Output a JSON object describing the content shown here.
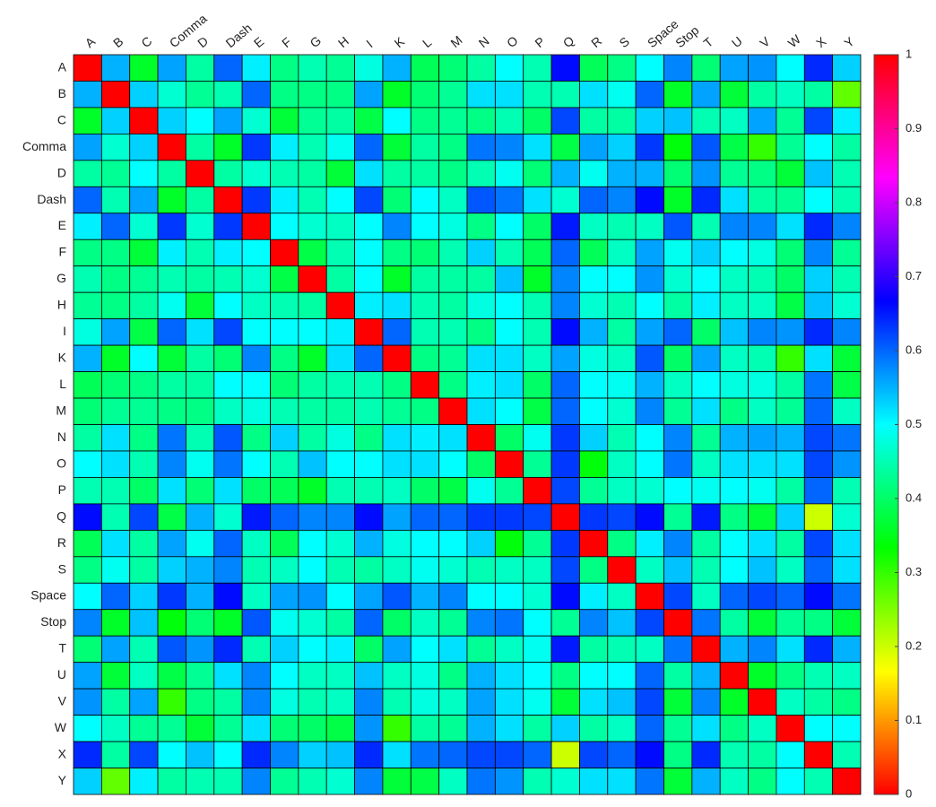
{
  "chart_data": {
    "type": "heatmap",
    "x_categories": [
      "A",
      "B",
      "C",
      "Comma",
      "D",
      "Dash",
      "E",
      "F",
      "G",
      "H",
      "I",
      "K",
      "L",
      "M",
      "N",
      "O",
      "P",
      "Q",
      "R",
      "S",
      "Space",
      "Stop",
      "T",
      "U",
      "V",
      "W",
      "X",
      "Y"
    ],
    "y_categories": [
      "A",
      "B",
      "C",
      "Comma",
      "D",
      "Dash",
      "E",
      "F",
      "G",
      "H",
      "I",
      "K",
      "L",
      "M",
      "N",
      "O",
      "P",
      "Q",
      "R",
      "S",
      "Space",
      "Stop",
      "T",
      "U",
      "V",
      "W",
      "X",
      "Y"
    ],
    "values": [
      [
        1,
        0.55,
        0.36,
        0.56,
        0.44,
        0.6,
        0.51,
        0.42,
        0.45,
        0.43,
        0.48,
        0.55,
        0.39,
        0.41,
        0.44,
        0.5,
        0.45,
        0.66,
        0.39,
        0.42,
        0.5,
        0.58,
        0.41,
        0.56,
        0.57,
        0.5,
        0.64,
        0.53
      ],
      [
        0.55,
        1,
        0.53,
        0.47,
        0.43,
        0.45,
        0.6,
        0.42,
        0.42,
        0.42,
        0.56,
        0.36,
        0.41,
        0.43,
        0.52,
        0.52,
        0.45,
        0.45,
        0.52,
        0.49,
        0.6,
        0.36,
        0.56,
        0.37,
        0.44,
        0.46,
        0.44,
        0.27
      ],
      [
        0.36,
        0.53,
        1,
        0.53,
        0.5,
        0.56,
        0.47,
        0.37,
        0.43,
        0.44,
        0.38,
        0.5,
        0.42,
        0.43,
        0.42,
        0.45,
        0.4,
        0.62,
        0.44,
        0.44,
        0.53,
        0.54,
        0.45,
        0.46,
        0.56,
        0.43,
        0.62,
        0.51
      ],
      [
        0.56,
        0.47,
        0.53,
        1,
        0.44,
        0.36,
        0.63,
        0.51,
        0.45,
        0.49,
        0.6,
        0.37,
        0.44,
        0.42,
        0.59,
        0.58,
        0.52,
        0.38,
        0.56,
        0.53,
        0.63,
        0.34,
        0.61,
        0.38,
        0.3,
        0.43,
        0.5,
        0.44
      ],
      [
        0.44,
        0.43,
        0.5,
        0.44,
        1,
        0.44,
        0.47,
        0.45,
        0.44,
        0.37,
        0.52,
        0.44,
        0.44,
        0.42,
        0.45,
        0.49,
        0.41,
        0.55,
        0.49,
        0.55,
        0.55,
        0.41,
        0.57,
        0.43,
        0.42,
        0.37,
        0.54,
        0.45
      ],
      [
        0.6,
        0.45,
        0.56,
        0.36,
        0.44,
        1,
        0.63,
        0.51,
        0.45,
        0.5,
        0.62,
        0.41,
        0.5,
        0.46,
        0.61,
        0.59,
        0.52,
        0.47,
        0.6,
        0.58,
        0.66,
        0.36,
        0.64,
        0.52,
        0.44,
        0.43,
        0.5,
        0.45
      ],
      [
        0.51,
        0.6,
        0.47,
        0.63,
        0.47,
        0.63,
        1,
        0.5,
        0.47,
        0.46,
        0.5,
        0.58,
        0.5,
        0.48,
        0.42,
        0.5,
        0.4,
        0.65,
        0.46,
        0.45,
        0.46,
        0.61,
        0.45,
        0.58,
        0.58,
        0.52,
        0.64,
        0.58
      ],
      [
        0.42,
        0.42,
        0.37,
        0.51,
        0.45,
        0.51,
        0.5,
        1,
        0.38,
        0.45,
        0.5,
        0.42,
        0.41,
        0.45,
        0.53,
        0.45,
        0.39,
        0.6,
        0.39,
        0.46,
        0.56,
        0.49,
        0.53,
        0.5,
        0.48,
        0.41,
        0.58,
        0.43
      ],
      [
        0.45,
        0.42,
        0.43,
        0.45,
        0.44,
        0.45,
        0.47,
        0.38,
        1,
        0.44,
        0.5,
        0.36,
        0.44,
        0.44,
        0.44,
        0.54,
        0.36,
        0.58,
        0.5,
        0.5,
        0.57,
        0.47,
        0.5,
        0.46,
        0.45,
        0.4,
        0.53,
        0.45
      ],
      [
        0.43,
        0.42,
        0.44,
        0.49,
        0.37,
        0.5,
        0.46,
        0.45,
        0.44,
        1,
        0.51,
        0.52,
        0.45,
        0.44,
        0.48,
        0.5,
        0.45,
        0.58,
        0.47,
        0.45,
        0.5,
        0.44,
        0.51,
        0.46,
        0.46,
        0.38,
        0.54,
        0.47
      ],
      [
        0.48,
        0.56,
        0.38,
        0.6,
        0.52,
        0.62,
        0.5,
        0.5,
        0.5,
        0.51,
        1,
        0.6,
        0.45,
        0.45,
        0.42,
        0.5,
        0.45,
        0.66,
        0.55,
        0.44,
        0.56,
        0.6,
        0.4,
        0.54,
        0.58,
        0.57,
        0.64,
        0.58
      ],
      [
        0.55,
        0.36,
        0.5,
        0.37,
        0.44,
        0.41,
        0.58,
        0.42,
        0.36,
        0.52,
        0.6,
        1,
        0.42,
        0.43,
        0.52,
        0.52,
        0.46,
        0.56,
        0.48,
        0.46,
        0.61,
        0.4,
        0.56,
        0.46,
        0.45,
        0.3,
        0.52,
        0.37
      ],
      [
        0.39,
        0.41,
        0.42,
        0.44,
        0.44,
        0.5,
        0.5,
        0.41,
        0.44,
        0.45,
        0.45,
        0.42,
        1,
        0.42,
        0.51,
        0.52,
        0.4,
        0.6,
        0.5,
        0.49,
        0.55,
        0.46,
        0.5,
        0.48,
        0.48,
        0.44,
        0.59,
        0.38
      ],
      [
        0.41,
        0.43,
        0.43,
        0.42,
        0.42,
        0.46,
        0.48,
        0.45,
        0.44,
        0.44,
        0.45,
        0.43,
        0.42,
        1,
        0.52,
        0.5,
        0.38,
        0.6,
        0.5,
        0.47,
        0.58,
        0.43,
        0.52,
        0.42,
        0.46,
        0.43,
        0.6,
        0.46
      ],
      [
        0.44,
        0.52,
        0.42,
        0.59,
        0.45,
        0.61,
        0.42,
        0.53,
        0.44,
        0.48,
        0.42,
        0.52,
        0.51,
        0.52,
        1,
        0.4,
        0.49,
        0.63,
        0.53,
        0.45,
        0.5,
        0.58,
        0.43,
        0.55,
        0.56,
        0.55,
        0.62,
        0.59
      ],
      [
        0.5,
        0.52,
        0.45,
        0.58,
        0.49,
        0.59,
        0.5,
        0.45,
        0.54,
        0.5,
        0.5,
        0.52,
        0.52,
        0.5,
        0.4,
        1,
        0.43,
        0.63,
        0.34,
        0.46,
        0.5,
        0.59,
        0.46,
        0.52,
        0.52,
        0.52,
        0.62,
        0.57
      ],
      [
        0.45,
        0.45,
        0.4,
        0.52,
        0.41,
        0.52,
        0.4,
        0.39,
        0.36,
        0.45,
        0.45,
        0.46,
        0.4,
        0.38,
        0.49,
        0.43,
        1,
        0.62,
        0.43,
        0.46,
        0.47,
        0.5,
        0.49,
        0.5,
        0.49,
        0.44,
        0.6,
        0.45
      ],
      [
        0.66,
        0.45,
        0.62,
        0.38,
        0.55,
        0.47,
        0.65,
        0.6,
        0.58,
        0.58,
        0.66,
        0.56,
        0.6,
        0.6,
        0.63,
        0.63,
        0.62,
        1,
        0.63,
        0.62,
        0.66,
        0.43,
        0.65,
        0.42,
        0.37,
        0.53,
        0.2,
        0.47
      ],
      [
        0.39,
        0.52,
        0.44,
        0.56,
        0.49,
        0.6,
        0.46,
        0.39,
        0.5,
        0.47,
        0.55,
        0.48,
        0.5,
        0.5,
        0.53,
        0.34,
        0.43,
        0.63,
        1,
        0.42,
        0.51,
        0.58,
        0.44,
        0.5,
        0.52,
        0.44,
        0.62,
        0.52
      ],
      [
        0.42,
        0.49,
        0.44,
        0.53,
        0.55,
        0.58,
        0.45,
        0.46,
        0.5,
        0.45,
        0.44,
        0.46,
        0.49,
        0.47,
        0.45,
        0.46,
        0.46,
        0.62,
        0.42,
        1,
        0.46,
        0.54,
        0.45,
        0.5,
        0.54,
        0.46,
        0.6,
        0.52
      ],
      [
        0.5,
        0.6,
        0.53,
        0.63,
        0.55,
        0.66,
        0.46,
        0.56,
        0.57,
        0.5,
        0.56,
        0.61,
        0.55,
        0.58,
        0.5,
        0.5,
        0.47,
        0.66,
        0.51,
        0.46,
        1,
        0.62,
        0.46,
        0.6,
        0.62,
        0.6,
        0.66,
        0.59
      ],
      [
        0.58,
        0.36,
        0.54,
        0.34,
        0.41,
        0.36,
        0.61,
        0.49,
        0.47,
        0.44,
        0.6,
        0.4,
        0.46,
        0.43,
        0.58,
        0.59,
        0.5,
        0.43,
        0.58,
        0.54,
        0.62,
        1,
        0.59,
        0.44,
        0.37,
        0.43,
        0.42,
        0.37
      ],
      [
        0.41,
        0.56,
        0.45,
        0.61,
        0.57,
        0.64,
        0.45,
        0.53,
        0.5,
        0.51,
        0.4,
        0.56,
        0.5,
        0.52,
        0.43,
        0.46,
        0.49,
        0.65,
        0.44,
        0.45,
        0.46,
        0.59,
        1,
        0.55,
        0.58,
        0.52,
        0.64,
        0.55
      ],
      [
        0.56,
        0.37,
        0.46,
        0.38,
        0.43,
        0.52,
        0.58,
        0.5,
        0.46,
        0.46,
        0.54,
        0.46,
        0.48,
        0.42,
        0.55,
        0.52,
        0.5,
        0.42,
        0.5,
        0.5,
        0.6,
        0.44,
        0.55,
        1,
        0.36,
        0.42,
        0.45,
        0.46
      ],
      [
        0.57,
        0.44,
        0.56,
        0.3,
        0.42,
        0.44,
        0.58,
        0.48,
        0.45,
        0.46,
        0.58,
        0.45,
        0.48,
        0.46,
        0.56,
        0.52,
        0.49,
        0.37,
        0.52,
        0.54,
        0.62,
        0.37,
        0.58,
        0.36,
        1,
        0.46,
        0.44,
        0.42
      ],
      [
        0.5,
        0.46,
        0.43,
        0.43,
        0.37,
        0.43,
        0.52,
        0.41,
        0.4,
        0.38,
        0.57,
        0.3,
        0.44,
        0.43,
        0.55,
        0.52,
        0.44,
        0.53,
        0.44,
        0.46,
        0.6,
        0.43,
        0.52,
        0.42,
        0.46,
        1,
        0.5,
        0.5
      ],
      [
        0.64,
        0.44,
        0.62,
        0.5,
        0.54,
        0.5,
        0.64,
        0.58,
        0.53,
        0.54,
        0.64,
        0.52,
        0.59,
        0.6,
        0.62,
        0.62,
        0.6,
        0.2,
        0.62,
        0.6,
        0.66,
        0.42,
        0.64,
        0.45,
        0.44,
        0.5,
        1,
        0.45
      ],
      [
        0.53,
        0.27,
        0.51,
        0.44,
        0.45,
        0.45,
        0.58,
        0.43,
        0.45,
        0.47,
        0.58,
        0.37,
        0.38,
        0.46,
        0.59,
        0.57,
        0.45,
        0.47,
        0.52,
        0.52,
        0.59,
        0.37,
        0.55,
        0.46,
        0.42,
        0.5,
        0.45,
        1
      ]
    ],
    "zlim": [
      0,
      1
    ],
    "zticks": [
      0,
      0.1,
      0.2,
      0.3,
      0.4,
      0.5,
      0.6,
      0.7,
      0.8,
      0.9,
      1
    ],
    "colormap": "hsv",
    "grid": true
  }
}
